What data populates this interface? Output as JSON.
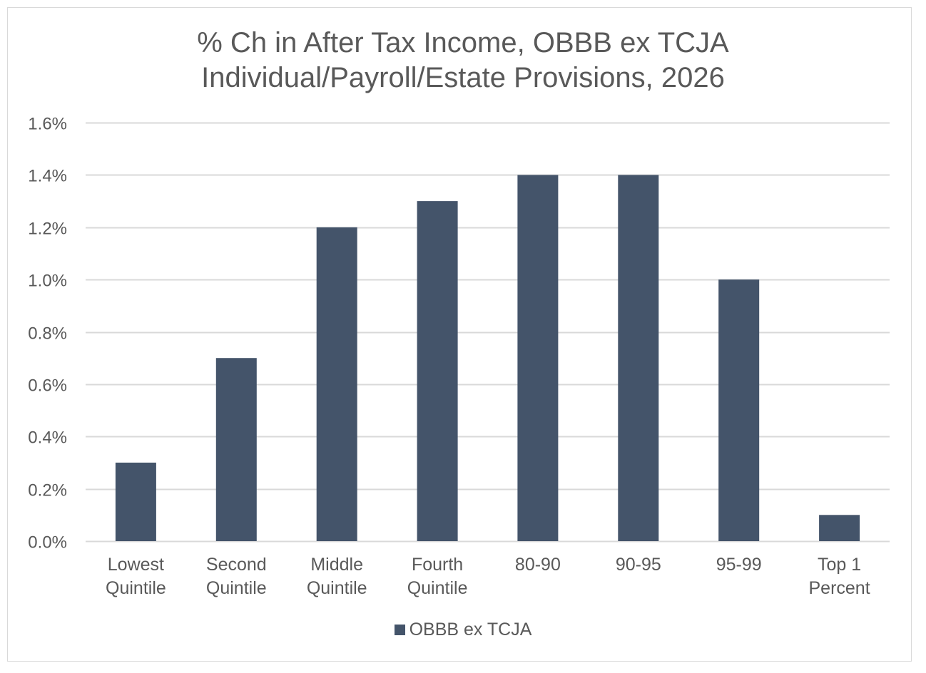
{
  "chart_data": {
    "type": "bar",
    "title_lines": [
      "% Ch in After Tax Income, OBBB ex TCJA",
      "Individual/Payroll/Estate Provisions, 2026"
    ],
    "categories": [
      [
        "Lowest",
        "Quintile"
      ],
      [
        "Second",
        "Quintile"
      ],
      [
        "Middle",
        "Quintile"
      ],
      [
        "Fourth",
        "Quintile"
      ],
      [
        "80-90"
      ],
      [
        "90-95"
      ],
      [
        "95-99"
      ],
      [
        "Top 1",
        "Percent"
      ]
    ],
    "series": [
      {
        "name": "OBBB ex TCJA",
        "values": [
          0.3,
          0.7,
          1.2,
          1.3,
          1.4,
          1.4,
          1.0,
          0.1
        ]
      }
    ],
    "ylim": [
      0,
      1.6
    ],
    "yticks": [
      0.0,
      0.2,
      0.4,
      0.6,
      0.8,
      1.0,
      1.2,
      1.4,
      1.6
    ],
    "ytick_labels": [
      "0.0%",
      "0.2%",
      "0.4%",
      "0.6%",
      "0.8%",
      "1.0%",
      "1.2%",
      "1.4%",
      "1.6%"
    ],
    "grid": true,
    "legend_position": "bottom",
    "colors": {
      "bar": "#44546a",
      "grid": "#d9d9d9",
      "text": "#595959"
    }
  }
}
